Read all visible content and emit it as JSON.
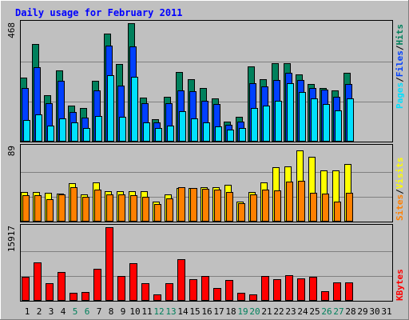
{
  "title": "Daily usage for February 2011",
  "colors": {
    "background": "#C0C0C0",
    "plot": "#C0C0C0",
    "grid": "#808080",
    "hits": "#00805C",
    "files": "#0040FF",
    "pages": "#00E0FF",
    "visits": "#FFFF00",
    "sites": "#FF8000",
    "kbytes": "#FF0000",
    "title": "#0000FF",
    "weekday": "#000000",
    "weekend": "#00805C"
  },
  "labels": {
    "pages": "Pages",
    "files": "Files",
    "hits": "Hits",
    "visits": "Visits",
    "sites": "Sites",
    "kbytes": "KBytes",
    "sep": "/"
  },
  "chart_data": [
    {
      "type": "bar",
      "panel": "hits-files-pages",
      "ymax_label": "468",
      "ylim": [
        0,
        468
      ],
      "x": [
        1,
        2,
        3,
        4,
        5,
        6,
        7,
        8,
        9,
        10,
        11,
        12,
        13,
        14,
        15,
        16,
        17,
        18,
        19,
        20,
        21,
        22,
        23,
        24,
        25,
        26,
        27,
        28
      ],
      "series": [
        {
          "name": "Hits",
          "values": [
            250,
            385,
            180,
            280,
            140,
            130,
            238,
            428,
            305,
            468,
            172,
            85,
            175,
            275,
            245,
            210,
            168,
            75,
            95,
            295,
            245,
            310,
            310,
            265,
            226,
            210,
            200,
            270
          ]
        },
        {
          "name": "Files",
          "values": [
            210,
            292,
            150,
            240,
            115,
            93,
            202,
            380,
            220,
            375,
            150,
            74,
            150,
            200,
            198,
            160,
            145,
            65,
            75,
            230,
            215,
            242,
            270,
            243,
            210,
            205,
            175,
            225
          ]
        },
        {
          "name": "Pages",
          "values": [
            84,
            106,
            60,
            88,
            74,
            52,
            98,
            262,
            94,
            255,
            72,
            50,
            62,
            118,
            88,
            72,
            56,
            46,
            50,
            130,
            140,
            160,
            230,
            195,
            168,
            145,
            120,
            168
          ]
        }
      ]
    },
    {
      "type": "bar",
      "panel": "visits-sites",
      "ymax_label": "89",
      "ylim": [
        0,
        89
      ],
      "x": [
        1,
        2,
        3,
        4,
        5,
        6,
        7,
        8,
        9,
        10,
        11,
        12,
        13,
        14,
        15,
        16,
        17,
        18,
        19,
        20,
        21,
        22,
        23,
        24,
        25,
        26,
        27,
        28
      ],
      "series": [
        {
          "name": "Visits",
          "values": [
            35,
            35,
            34,
            33,
            45,
            32,
            46,
            36,
            36,
            36,
            36,
            23,
            32,
            40,
            40,
            41,
            41,
            44,
            23,
            35,
            46,
            65,
            66,
            85,
            77,
            61,
            61,
            69
          ]
        },
        {
          "name": "Sites",
          "values": [
            31,
            31,
            26,
            32,
            41,
            29,
            38,
            32,
            32,
            31,
            29,
            20,
            27,
            41,
            40,
            39,
            38,
            35,
            21,
            32,
            38,
            37,
            47,
            48,
            34,
            33,
            23,
            34
          ]
        }
      ]
    },
    {
      "type": "bar",
      "panel": "kbytes",
      "ymax_label": "15917",
      "ylim": [
        0,
        15917
      ],
      "x": [
        1,
        2,
        3,
        4,
        5,
        6,
        7,
        8,
        9,
        10,
        11,
        12,
        13,
        14,
        15,
        16,
        17,
        18,
        19,
        20,
        21,
        22,
        23,
        24,
        25,
        26,
        27,
        28
      ],
      "series": [
        {
          "name": "KBytes",
          "values": [
            5000,
            8300,
            3600,
            6100,
            1600,
            1700,
            6800,
            15917,
            5200,
            8100,
            3600,
            1200,
            3700,
            9000,
            4500,
            5200,
            2700,
            4300,
            1600,
            1300,
            5300,
            4600,
            5500,
            4700,
            5000,
            2000,
            3800,
            3800
          ]
        }
      ]
    }
  ],
  "xaxis": {
    "days": [
      "1",
      "2",
      "3",
      "4",
      "5",
      "6",
      "7",
      "8",
      "9",
      "10",
      "11",
      "12",
      "13",
      "14",
      "15",
      "16",
      "17",
      "18",
      "19",
      "20",
      "21",
      "22",
      "23",
      "24",
      "25",
      "26",
      "27",
      "28",
      "29",
      "30",
      "31"
    ],
    "weekend": [
      5,
      6,
      12,
      13,
      19,
      20,
      26,
      27
    ]
  }
}
